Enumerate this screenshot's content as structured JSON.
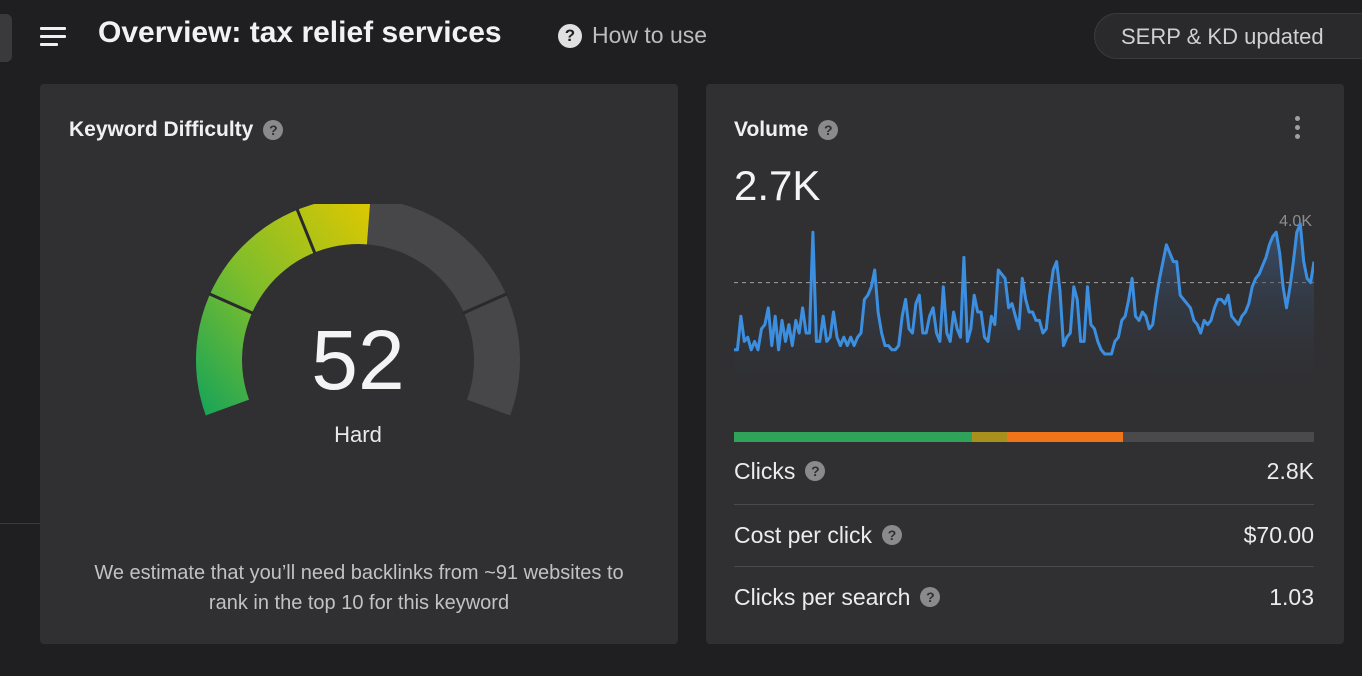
{
  "header": {
    "title": "Overview: tax relief services",
    "how_to_use": "How to use",
    "serp_status": "SERP & KD updated",
    "help_glyph": "?"
  },
  "keyword_difficulty": {
    "label": "Keyword Difficulty",
    "value": "52",
    "value_fraction": 0.52,
    "rating": "Hard",
    "description": "We estimate that you’ll need backlinks from ~91 websites to rank in the top 10 for this keyword",
    "help_glyph": "?"
  },
  "volume": {
    "label": "Volume",
    "value": "2.7K",
    "max_label": "4.0K",
    "help_glyph": "?",
    "chart_data": {
      "type": "area",
      "title": "",
      "y_max_label": "4.0K",
      "ylim": [
        0,
        4000
      ],
      "reference_line": 2700,
      "values": [
        1100,
        1100,
        1900,
        1300,
        1400,
        1100,
        1300,
        1100,
        1600,
        1700,
        2100,
        1200,
        1900,
        1100,
        1800,
        1300,
        1700,
        1200,
        1800,
        1500,
        2100,
        1500,
        1500,
        3900,
        1300,
        1300,
        1900,
        1300,
        1400,
        2000,
        1400,
        1200,
        1400,
        1200,
        1400,
        1200,
        1400,
        1500,
        2300,
        2400,
        2600,
        3000,
        2000,
        1500,
        1200,
        1200,
        1100,
        1100,
        1200,
        1900,
        2300,
        1600,
        1500,
        2200,
        2400,
        1500,
        1500,
        1900,
        2100,
        1500,
        1300,
        2600,
        1500,
        1300,
        2000,
        1600,
        1400,
        3300,
        1300,
        1600,
        2400,
        2000,
        2000,
        1400,
        1300,
        1900,
        1700,
        3000,
        2900,
        2800,
        2100,
        2200,
        1900,
        1600,
        2800,
        2300,
        2000,
        2000,
        1800,
        1800,
        1500,
        1600,
        2400,
        3000,
        3200,
        2500,
        1200,
        1400,
        1500,
        2600,
        2300,
        1300,
        1300,
        2600,
        1700,
        1600,
        1300,
        1100,
        1000,
        1000,
        1000,
        1300,
        1400,
        1800,
        1900,
        2300,
        2800,
        1900,
        1800,
        2000,
        1900,
        1600,
        1700,
        2300,
        2800,
        3200,
        3600,
        3400,
        3200,
        3200,
        2400,
        2300,
        2200,
        2100,
        1800,
        1700,
        1500,
        1800,
        1700,
        1800,
        2100,
        2300,
        2300,
        2200,
        2400,
        1900,
        1800,
        1700,
        1900,
        2000,
        2200,
        2600,
        2800,
        2900,
        3100,
        3300,
        3600,
        3800,
        3900,
        3400,
        2600,
        2100,
        2600,
        3200,
        3900,
        4100,
        3200,
        2800,
        2700,
        3200
      ]
    },
    "breakdown": [
      {
        "share": 0.41,
        "color": "#2fa35a"
      },
      {
        "share": 0.06,
        "color": "#a8901c"
      },
      {
        "share": 0.2,
        "color": "#f07418"
      },
      {
        "share": 0.33,
        "color": "#4a4a4d"
      }
    ],
    "metrics": [
      {
        "label": "Clicks",
        "value": "2.8K"
      },
      {
        "label": "Cost per click",
        "value": "$70.00"
      },
      {
        "label": "Clicks per search",
        "value": "1.03"
      }
    ]
  }
}
